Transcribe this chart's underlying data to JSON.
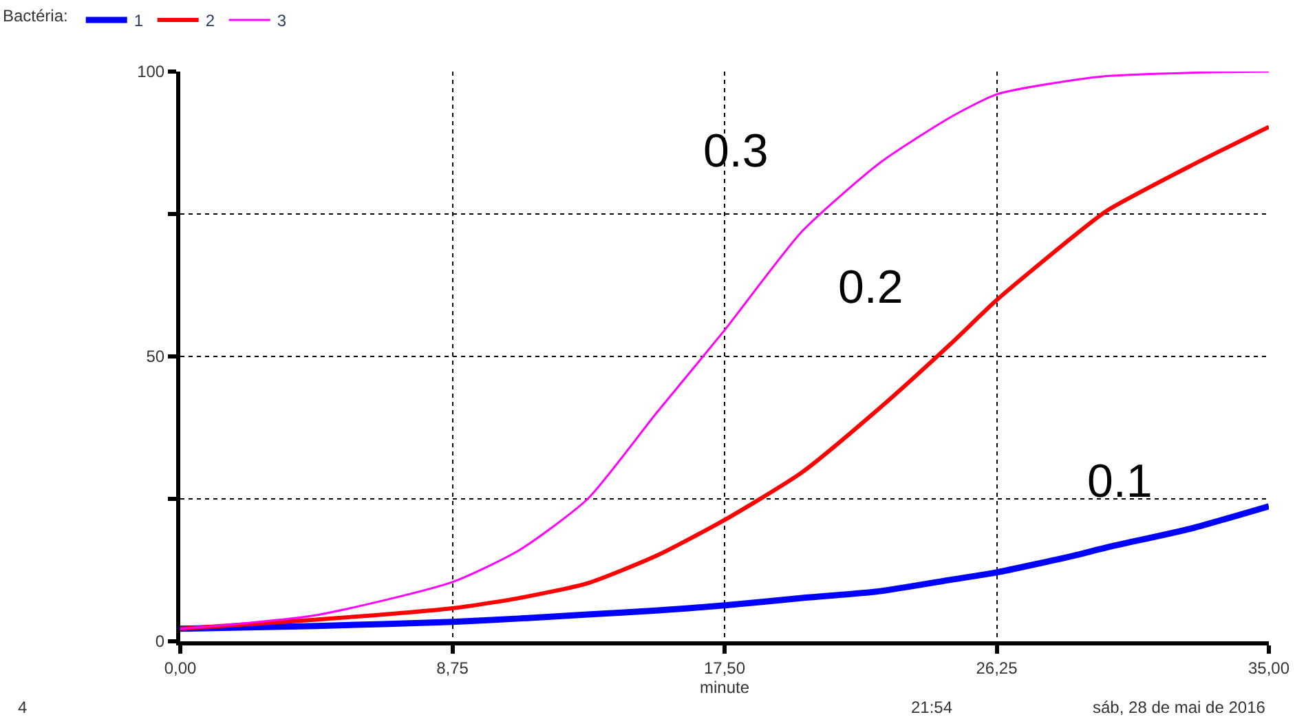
{
  "chart_data": {
    "type": "line",
    "xlabel": "minute",
    "legend_title": "Bactéria:",
    "legend": "top left",
    "grid": true,
    "line_style": "solid",
    "marker": "none",
    "x": [
      0,
      4.375,
      8.75,
      10.9,
      13.1,
      15.3,
      17.5,
      20,
      22.5,
      24.77,
      26.25,
      28.7,
      29.8,
      32.5,
      35
    ],
    "series": [
      {
        "name": "1",
        "color": "#0000ff",
        "values": [
          2.2,
          2.7,
          3.4,
          4.0,
          4.7,
          5.4,
          6.3,
          7.6,
          8.8,
          10.8,
          12.1,
          15,
          16.5,
          19.8,
          23.7
        ]
      },
      {
        "name": "2",
        "color": "#ff0000",
        "values": [
          2.2,
          3.8,
          5.8,
          7.6,
          10.2,
          15,
          21.3,
          29.7,
          41,
          52.2,
          59.9,
          71,
          75.6,
          83.5,
          90.3
        ]
      },
      {
        "name": "3",
        "color": "#ff00ff",
        "values": [
          2.2,
          4.6,
          10.4,
          16,
          25,
          40,
          54.6,
          72,
          84,
          92,
          96,
          98.5,
          99.2,
          99.8,
          100
        ]
      }
    ],
    "xlim": [
      0,
      35
    ],
    "xticks": [
      {
        "value": 0,
        "label": "0,00"
      },
      {
        "value": 8.75,
        "label": "8,75"
      },
      {
        "value": 17.5,
        "label": "17,50"
      },
      {
        "value": 26.25,
        "label": "26,25"
      },
      {
        "value": 35,
        "label": "35,00"
      }
    ],
    "ylim": [
      0,
      100
    ],
    "yticks": [
      0,
      {
        "value": 25,
        "label": null
      },
      50,
      {
        "value": 75,
        "label": null
      },
      100
    ],
    "annotations": [
      "0.3",
      "0.2",
      "0.1",
      "4",
      "21:54",
      "sáb, 28 de mai de 2016"
    ]
  }
}
